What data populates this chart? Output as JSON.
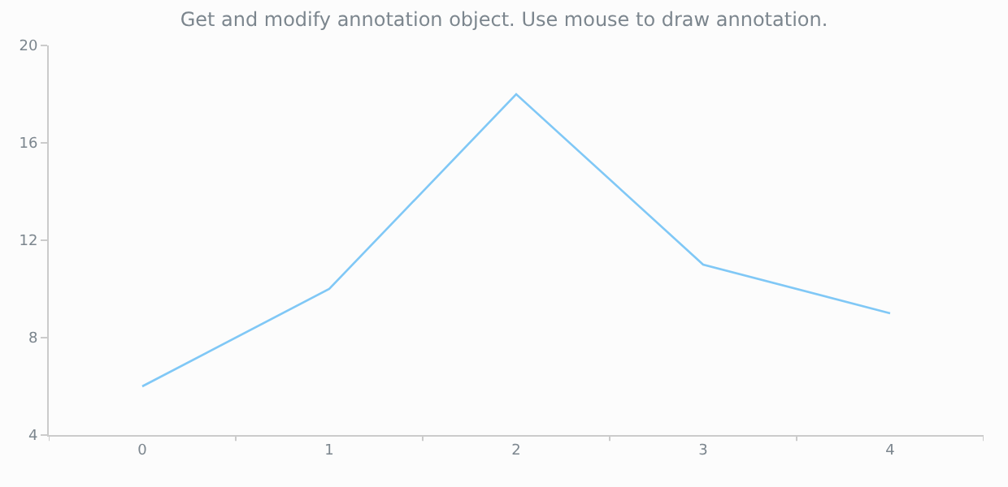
{
  "chart_data": {
    "type": "line",
    "title": "Get and modify annotation object. Use mouse to draw annotation.",
    "categories": [
      "0",
      "1",
      "2",
      "3",
      "4"
    ],
    "series": [
      {
        "color": "#80c8f6",
        "values": [
          6,
          10,
          18,
          11,
          9
        ]
      }
    ],
    "ylim": [
      4,
      20
    ],
    "yticks": [
      4,
      8,
      12,
      16,
      20
    ],
    "marker": "none",
    "line_style": "solid"
  }
}
